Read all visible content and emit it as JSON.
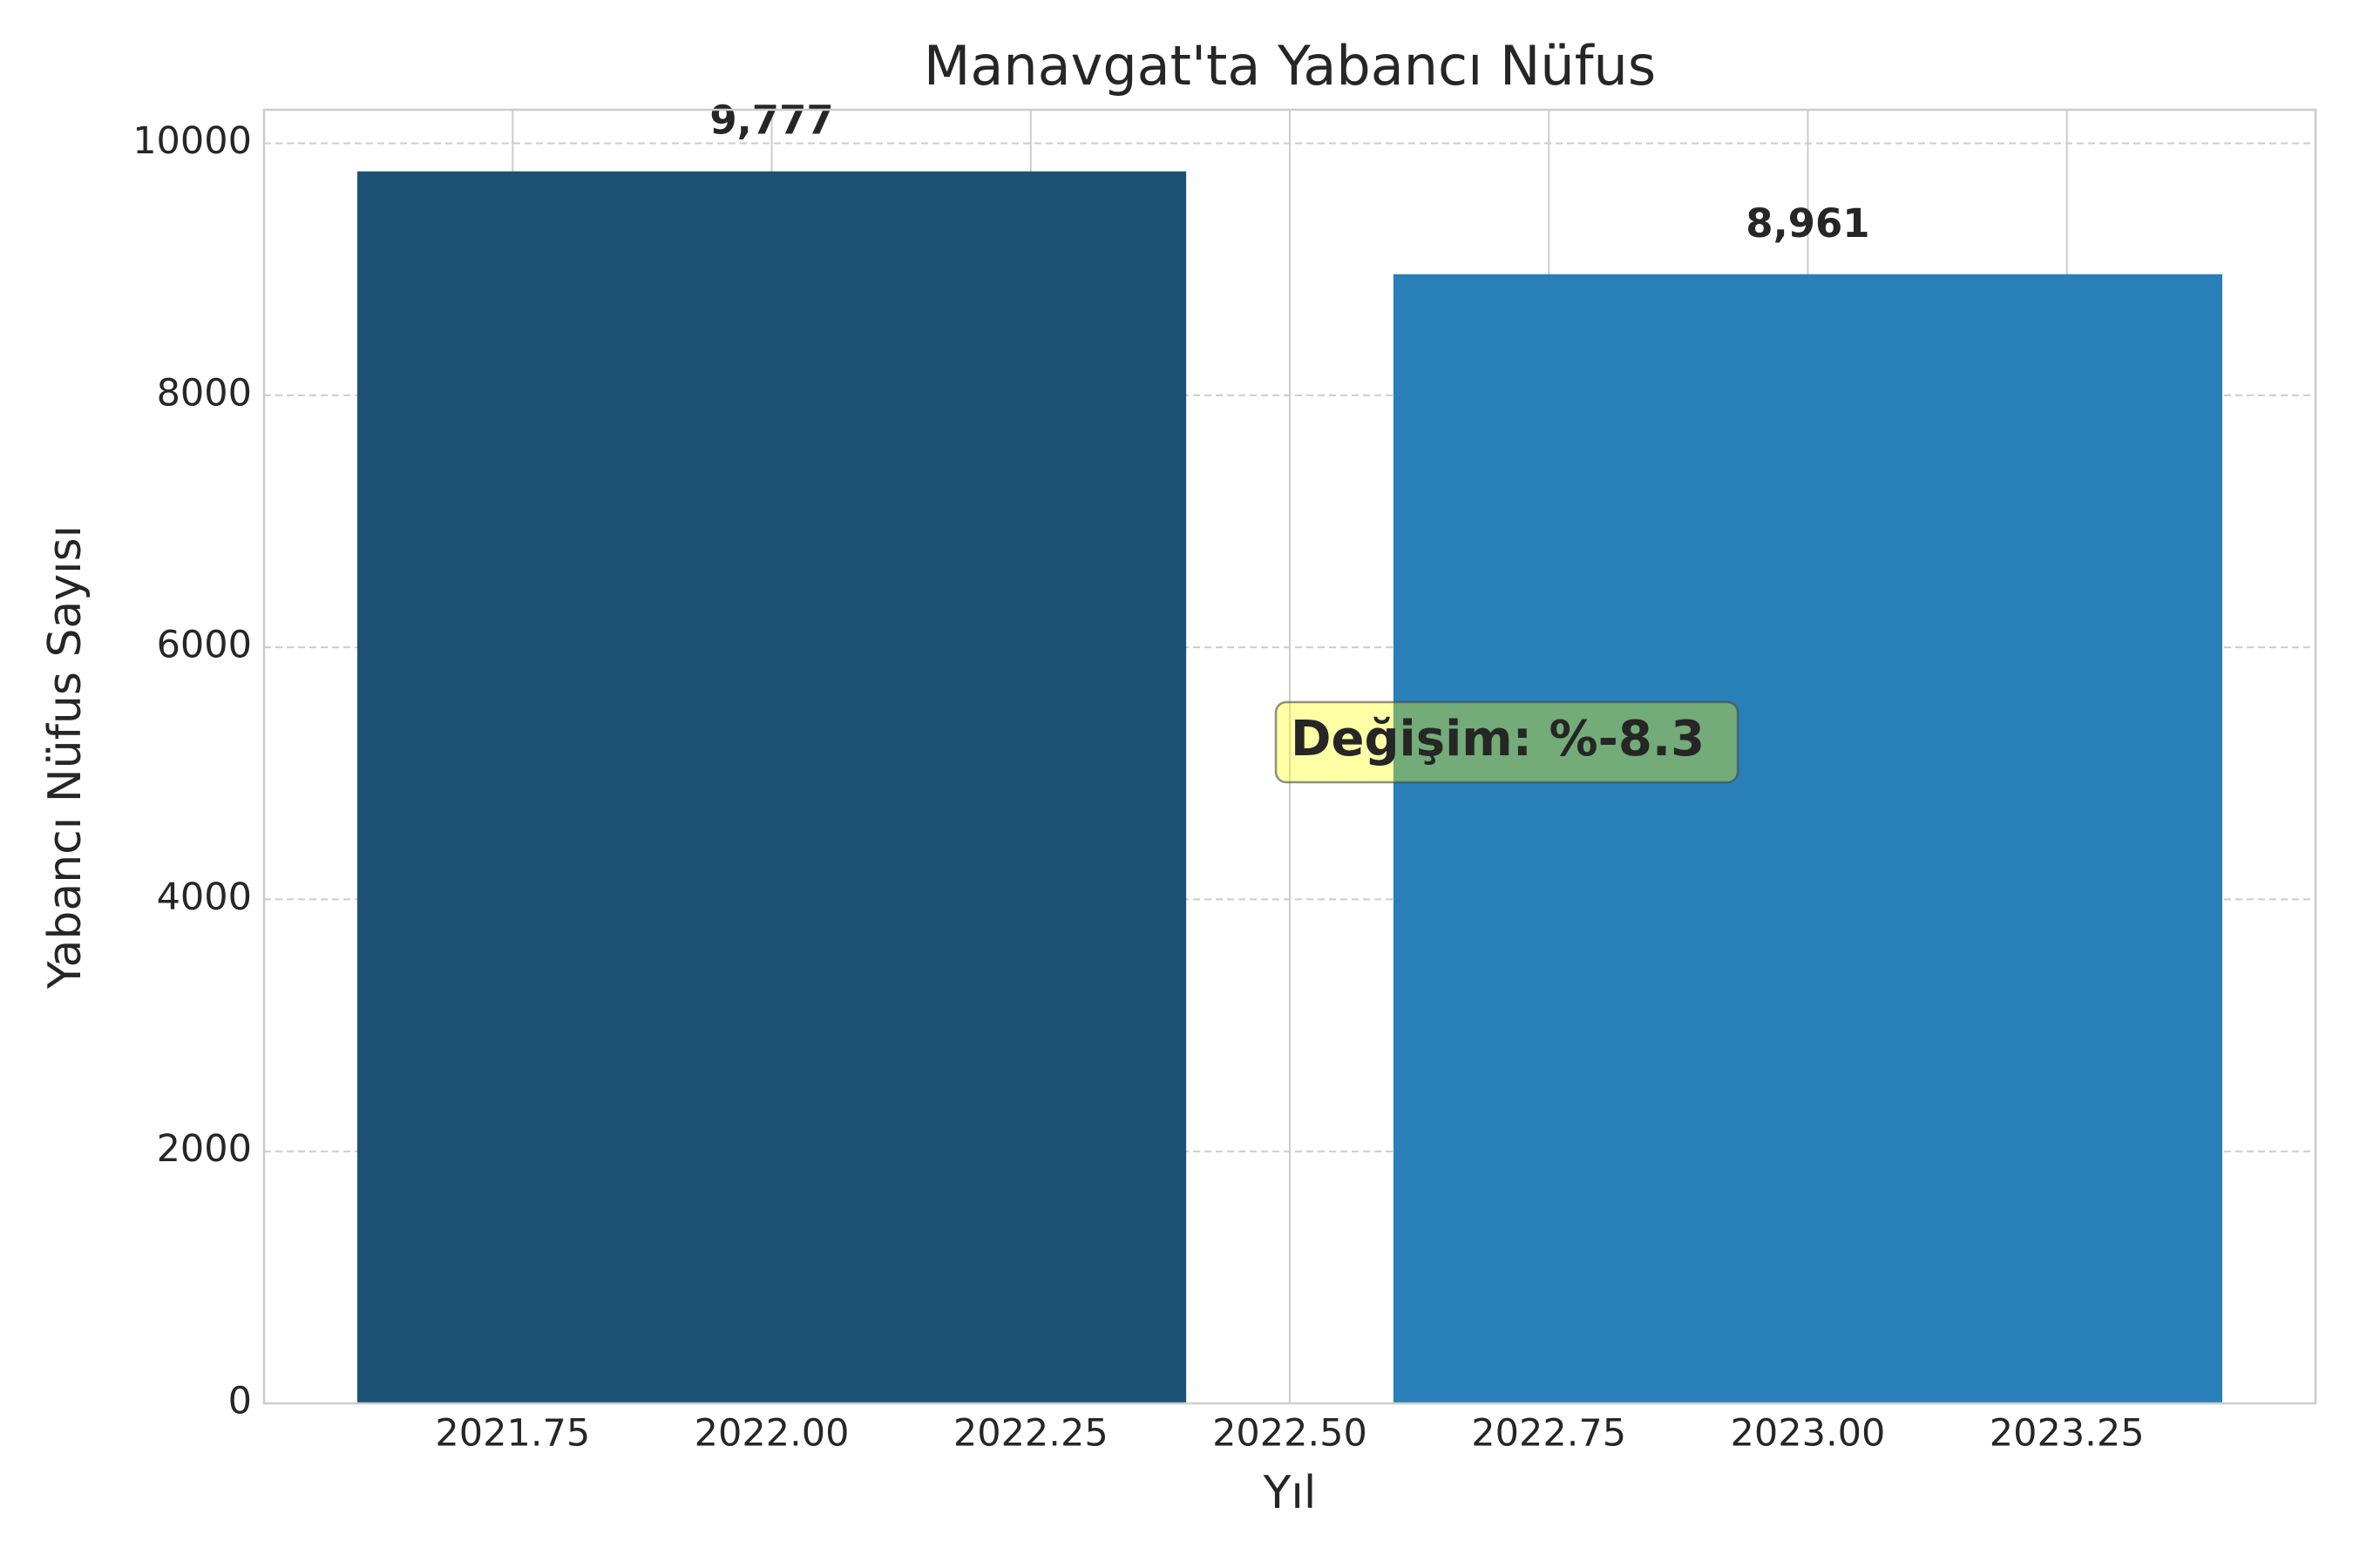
{
  "chart_data": {
    "type": "bar",
    "title": "Manavgat'ta Yabancı Nüfus",
    "x_label": "Yıl",
    "y_label": "Yabancı Nüfus Sayısı",
    "x": [
      2022,
      2023
    ],
    "values": [
      9777,
      8961
    ],
    "value_labels": [
      "9,777",
      "8,961"
    ],
    "colors": [
      "#1b5276",
      "#2980b9"
    ],
    "annotation": "Değişim: %-8.3",
    "xlim": [
      2021.51,
      2023.49
    ],
    "xticks": [
      2021.75,
      {
        "value": 2022,
        "label": "2022.00"
      },
      2022.25,
      {
        "value": 2022.5,
        "label": "2022.50"
      },
      2022.75,
      {
        "value": 2023,
        "label": "2023.00"
      },
      2023.25
    ],
    "ylim": [
      0,
      10266
    ],
    "yticks": [
      0,
      2000,
      4000,
      6000,
      8000,
      10000
    ],
    "grid": true
  }
}
